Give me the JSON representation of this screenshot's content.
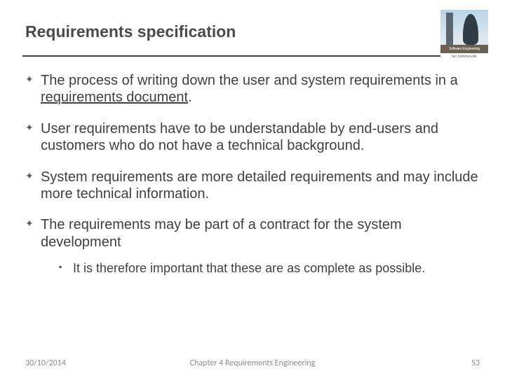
{
  "title": "Requirements specification",
  "logo": {
    "strip": "Software Engineering",
    "sub": "Ian Sommerville"
  },
  "bullets": [
    {
      "text_pre": "The process of writing down the user and system requirements in a ",
      "underlined": "requirements document",
      "text_post": "."
    },
    {
      "text": "User requirements have to be understandable by end-users and customers who do not have a technical background."
    },
    {
      "text": "System requirements are more detailed requirements and may include more technical information."
    },
    {
      "text": "The requirements may be part of a contract for the system development",
      "sub": [
        "It is therefore important that these are as complete as possible."
      ]
    }
  ],
  "footer": {
    "date": "30/10/2014",
    "chapter": "Chapter 4 Requirements Engineering",
    "page": "53"
  },
  "colors": {
    "text": "#3f3f3f",
    "rule": "#404040",
    "footer": "#8a8a8a",
    "background": "#ffffff"
  },
  "fonts": {
    "title_size_pt": 17,
    "body_size_pt": 15,
    "sub_size_pt": 13,
    "footer_size_pt": 9
  }
}
